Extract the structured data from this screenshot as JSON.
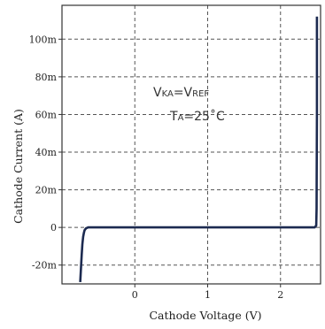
{
  "chart_data": {
    "type": "line",
    "title": "",
    "xlabel": "Cathode Voltage (V)",
    "ylabel": "Cathode Current (A)",
    "xlim": [
      -1.0,
      2.55
    ],
    "ylim": [
      -30,
      118
    ],
    "x_ticks": [
      {
        "value": 0,
        "label": "0"
      },
      {
        "value": 1,
        "label": "1"
      },
      {
        "value": 2,
        "label": "2"
      }
    ],
    "y_ticks": [
      {
        "value": 100,
        "label": "100m"
      },
      {
        "value": 80,
        "label": "80m"
      },
      {
        "value": 60,
        "label": "60m"
      },
      {
        "value": 40,
        "label": "40m"
      },
      {
        "value": 20,
        "label": "20m"
      },
      {
        "value": 0,
        "label": "0"
      },
      {
        "value": -20,
        "label": "-20m"
      }
    ],
    "y_unit": "mA",
    "grid": true,
    "series": [
      {
        "color": "#1c2a50",
        "x": [
          -0.75,
          -0.74,
          -0.73,
          -0.72,
          -0.71,
          -0.7,
          -0.69,
          -0.67,
          -0.64,
          -0.6,
          0,
          1,
          2,
          2.4,
          2.47,
          2.49,
          2.495,
          2.497,
          2.5,
          2.5
        ],
        "y": [
          -29,
          -22,
          -15,
          -9,
          -5,
          -3,
          -1.5,
          -0.5,
          0,
          0,
          0,
          0,
          0,
          0,
          0,
          1,
          10,
          25,
          60,
          112
        ]
      }
    ],
    "annotations": [
      {
        "text": "VKA=VREF",
        "main": "V",
        "sub": "KA",
        "main2": "=V",
        "sub2": "REF"
      },
      {
        "text": "TA=25˚C",
        "main": "T",
        "sub": "A",
        "rest": "=25˚C"
      }
    ]
  }
}
